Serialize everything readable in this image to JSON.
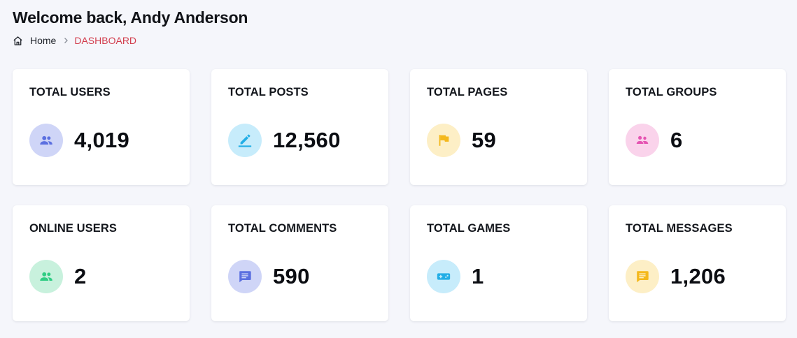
{
  "header": {
    "title": "Welcome back, Andy Anderson"
  },
  "breadcrumb": {
    "home_label": "Home",
    "current_label": "DASHBOARD",
    "current_color": "#d23d4d"
  },
  "stats": [
    {
      "label": "TOTAL USERS",
      "value": "4,019",
      "icon": "users-icon",
      "icon_bg": "#cfd5f7",
      "icon_color": "#5b6fe0"
    },
    {
      "label": "TOTAL POSTS",
      "value": "12,560",
      "icon": "edit-icon",
      "icon_bg": "#c7ecfb",
      "icon_color": "#22aee6"
    },
    {
      "label": "TOTAL PAGES",
      "value": "59",
      "icon": "flag-icon",
      "icon_bg": "#fdefc6",
      "icon_color": "#f4b81c"
    },
    {
      "label": "TOTAL GROUPS",
      "value": "6",
      "icon": "group-icon",
      "icon_bg": "#fad3eb",
      "icon_color": "#e554b2"
    },
    {
      "label": "ONLINE USERS",
      "value": "2",
      "icon": "online-users-icon",
      "icon_bg": "#c8f1dd",
      "icon_color": "#2fcd83"
    },
    {
      "label": "TOTAL COMMENTS",
      "value": "590",
      "icon": "comment-icon",
      "icon_bg": "#cfd5f7",
      "icon_color": "#5b6fe0"
    },
    {
      "label": "TOTAL GAMES",
      "value": "1",
      "icon": "gamepad-icon",
      "icon_bg": "#c7ecfb",
      "icon_color": "#22aee6"
    },
    {
      "label": "TOTAL MESSAGES",
      "value": "1,206",
      "icon": "message-icon",
      "icon_bg": "#fdefc6",
      "icon_color": "#f4b81c"
    }
  ]
}
